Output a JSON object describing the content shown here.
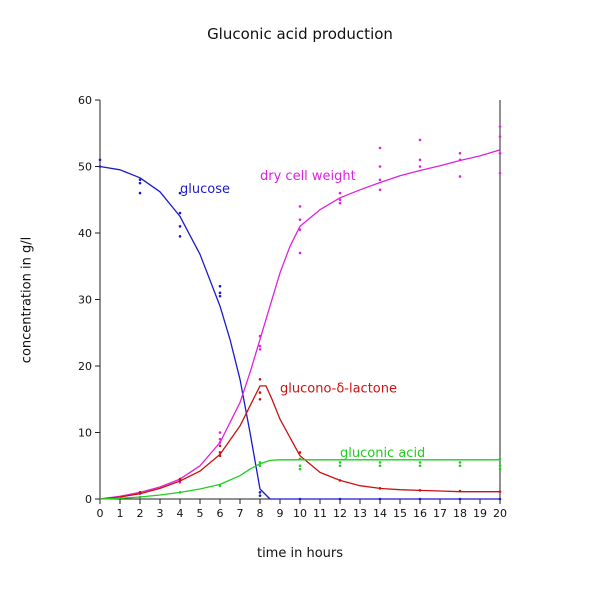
{
  "chart_data": {
    "type": "line",
    "title": "Gluconic acid production",
    "xlabel": "time in hours",
    "ylabel": "concentration in g/l",
    "xlim": [
      0,
      20
    ],
    "ylim": [
      0,
      60
    ],
    "xticks": [
      0,
      1,
      2,
      3,
      4,
      5,
      6,
      7,
      8,
      9,
      10,
      11,
      12,
      13,
      14,
      15,
      16,
      17,
      18,
      19,
      20
    ],
    "yticks": [
      0,
      10,
      20,
      30,
      40,
      50,
      60
    ],
    "grid": false,
    "series": [
      {
        "name": "glucose",
        "color": "#1a1acc",
        "label_at": [
          4,
          46
        ],
        "curve": [
          [
            0,
            50
          ],
          [
            1,
            49.5
          ],
          [
            2,
            48.3
          ],
          [
            3,
            46.2
          ],
          [
            4,
            42.5
          ],
          [
            5,
            36.8
          ],
          [
            6,
            29
          ],
          [
            6.5,
            24
          ],
          [
            7,
            18
          ],
          [
            7.5,
            10
          ],
          [
            8,
            1.5
          ],
          [
            8.5,
            0
          ],
          [
            9,
            0
          ],
          [
            20,
            0
          ]
        ],
        "points": [
          [
            0,
            50
          ],
          [
            0,
            51
          ],
          [
            2,
            48
          ],
          [
            2,
            46
          ],
          [
            2,
            47.5
          ],
          [
            4,
            43
          ],
          [
            4,
            41
          ],
          [
            4,
            39.5
          ],
          [
            4,
            46
          ],
          [
            6,
            32
          ],
          [
            6,
            31
          ],
          [
            6,
            30.5
          ],
          [
            8,
            1
          ],
          [
            8,
            0.5
          ],
          [
            10,
            0
          ],
          [
            12,
            0
          ],
          [
            14,
            0
          ],
          [
            16,
            0
          ],
          [
            18,
            0
          ],
          [
            20,
            0
          ]
        ]
      },
      {
        "name": "dry cell weight",
        "color": "#dd22dd",
        "label_at": [
          8,
          48
        ],
        "curve": [
          [
            0,
            0
          ],
          [
            1,
            0.4
          ],
          [
            2,
            1
          ],
          [
            3,
            1.8
          ],
          [
            4,
            3
          ],
          [
            5,
            5
          ],
          [
            6,
            8.5
          ],
          [
            7,
            14.5
          ],
          [
            7.5,
            19
          ],
          [
            8,
            24
          ],
          [
            8.5,
            29
          ],
          [
            9,
            34
          ],
          [
            9.5,
            38
          ],
          [
            10,
            41
          ],
          [
            11,
            43.5
          ],
          [
            12,
            45.3
          ],
          [
            13,
            46.5
          ],
          [
            14,
            47.6
          ],
          [
            15,
            48.6
          ],
          [
            16,
            49.4
          ],
          [
            17,
            50.1
          ],
          [
            18,
            50.9
          ],
          [
            19,
            51.6
          ],
          [
            20,
            52.5
          ]
        ],
        "points": [
          [
            2,
            1
          ],
          [
            2,
            0.8
          ],
          [
            4,
            3
          ],
          [
            4,
            2.5
          ],
          [
            6,
            10
          ],
          [
            6,
            9
          ],
          [
            6,
            8.5
          ],
          [
            8,
            24.5
          ],
          [
            8,
            23
          ],
          [
            8,
            22.5
          ],
          [
            10,
            44
          ],
          [
            10,
            42
          ],
          [
            10,
            40.5
          ],
          [
            10,
            37
          ],
          [
            12,
            46
          ],
          [
            12,
            45
          ],
          [
            12,
            44.5
          ],
          [
            14,
            52.8
          ],
          [
            14,
            50
          ],
          [
            14,
            48
          ],
          [
            14,
            46.5
          ],
          [
            16,
            54
          ],
          [
            16,
            51
          ],
          [
            16,
            50
          ],
          [
            18,
            52
          ],
          [
            18,
            51
          ],
          [
            18,
            48.5
          ],
          [
            20,
            56
          ],
          [
            20,
            54.5
          ],
          [
            20,
            52
          ],
          [
            20,
            49
          ]
        ]
      },
      {
        "name": "glucono-δ-lactone",
        "color": "#cc1111",
        "label_at": [
          9,
          16
        ],
        "curve": [
          [
            0,
            0
          ],
          [
            1,
            0.3
          ],
          [
            2,
            0.8
          ],
          [
            3,
            1.6
          ],
          [
            4,
            2.7
          ],
          [
            5,
            4.2
          ],
          [
            6,
            6.7
          ],
          [
            7,
            11
          ],
          [
            7.5,
            14
          ],
          [
            8,
            17
          ],
          [
            8.3,
            17
          ],
          [
            8.6,
            15
          ],
          [
            9,
            12
          ],
          [
            10,
            6.5
          ],
          [
            11,
            4
          ],
          [
            12,
            2.8
          ],
          [
            13,
            2
          ],
          [
            14,
            1.6
          ],
          [
            15,
            1.4
          ],
          [
            16,
            1.3
          ],
          [
            17,
            1.2
          ],
          [
            18,
            1.1
          ],
          [
            19,
            1.1
          ],
          [
            20,
            1.1
          ]
        ],
        "points": [
          [
            2,
            1
          ],
          [
            4,
            3
          ],
          [
            4,
            2.8
          ],
          [
            6,
            8
          ],
          [
            6,
            7
          ],
          [
            6,
            6.5
          ],
          [
            8,
            18
          ],
          [
            8,
            16
          ],
          [
            8,
            15
          ],
          [
            10,
            7
          ],
          [
            10,
            6
          ],
          [
            12,
            2.8
          ],
          [
            14,
            1.6
          ],
          [
            16,
            1.3
          ],
          [
            18,
            1.2
          ],
          [
            20,
            1.1
          ]
        ]
      },
      {
        "name": "gluconic acid",
        "color": "#22cc22",
        "label_at": [
          12,
          6.3
        ],
        "curve": [
          [
            0,
            0
          ],
          [
            1,
            0.1
          ],
          [
            2,
            0.3
          ],
          [
            3,
            0.6
          ],
          [
            4,
            1
          ],
          [
            5,
            1.5
          ],
          [
            6,
            2.2
          ],
          [
            7,
            3.5
          ],
          [
            7.5,
            4.5
          ],
          [
            8,
            5.3
          ],
          [
            8.5,
            5.8
          ],
          [
            9,
            5.9
          ],
          [
            10,
            5.9
          ],
          [
            20,
            5.9
          ]
        ],
        "points": [
          [
            2,
            0.3
          ],
          [
            4,
            1
          ],
          [
            6,
            2
          ],
          [
            8,
            5
          ],
          [
            8,
            5.5
          ],
          [
            10,
            6
          ],
          [
            10,
            5
          ],
          [
            10,
            4.5
          ],
          [
            12,
            5.5
          ],
          [
            12,
            5
          ],
          [
            14,
            5.5
          ],
          [
            14,
            5
          ],
          [
            16,
            5.5
          ],
          [
            16,
            5
          ],
          [
            18,
            5.5
          ],
          [
            18,
            5
          ],
          [
            20,
            6
          ],
          [
            20,
            5
          ],
          [
            20,
            4.5
          ]
        ]
      }
    ]
  }
}
